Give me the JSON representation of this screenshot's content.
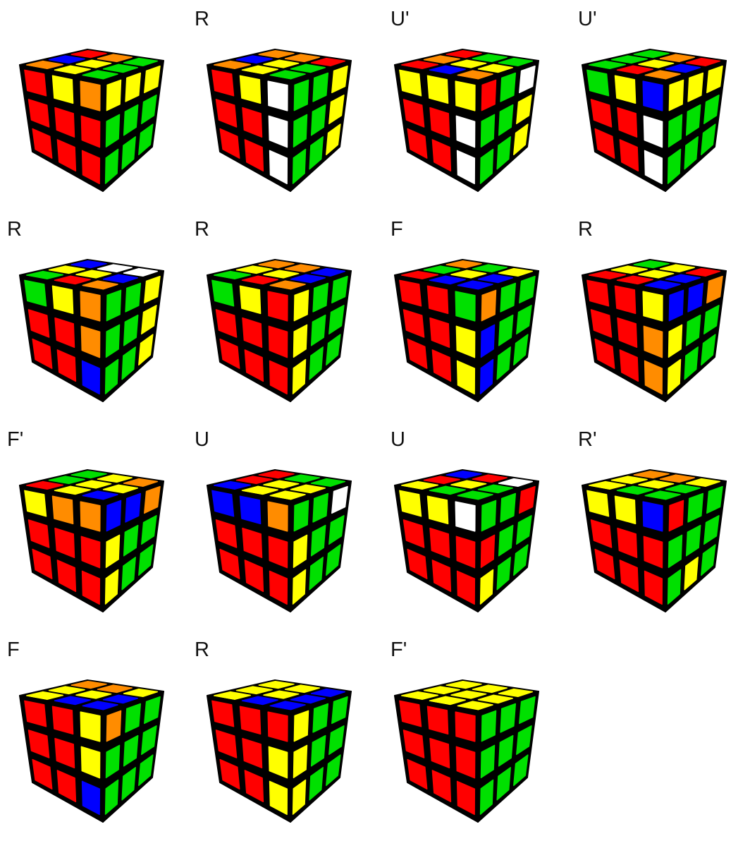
{
  "palette": {
    "R": "#FF0000",
    "G": "#00E000",
    "B": "#0000FF",
    "Y": "#FFFF00",
    "O": "#FF8C00",
    "W": "#FFFFFF",
    "outline": "#000000",
    "background": "#FFFFFF"
  },
  "steps": [
    {
      "move": "",
      "top": [
        "O",
        "B",
        "R",
        "Y",
        "Y",
        "O",
        "G",
        "G",
        "G"
      ],
      "front": [
        "R",
        "Y",
        "O",
        "R",
        "R",
        "R",
        "R",
        "R",
        "R"
      ],
      "right": [
        "Y",
        "Y",
        "Y",
        "G",
        "G",
        "G",
        "G",
        "G",
        "G"
      ]
    },
    {
      "move": "R",
      "top": [
        "O",
        "B",
        "O",
        "Y",
        "Y",
        "O",
        "G",
        "G",
        "R"
      ],
      "front": [
        "R",
        "Y",
        "W",
        "R",
        "R",
        "W",
        "R",
        "R",
        "W"
      ],
      "right": [
        "G",
        "G",
        "Y",
        "G",
        "G",
        "Y",
        "G",
        "G",
        "Y"
      ]
    },
    {
      "move": "U'",
      "top": [
        "R",
        "O",
        "R",
        "B",
        "Y",
        "G",
        "O",
        "Y",
        "G"
      ],
      "front": [
        "Y",
        "Y",
        "Y",
        "R",
        "R",
        "W",
        "R",
        "R",
        "W"
      ],
      "right": [
        "R",
        "G",
        "W",
        "G",
        "G",
        "Y",
        "G",
        "G",
        "Y"
      ]
    },
    {
      "move": "U'",
      "top": [
        "G",
        "G",
        "G",
        "R",
        "Y",
        "O",
        "O",
        "B",
        "R"
      ],
      "front": [
        "G",
        "Y",
        "B",
        "R",
        "R",
        "W",
        "R",
        "R",
        "W"
      ],
      "right": [
        "Y",
        "Y",
        "Y",
        "G",
        "G",
        "G",
        "G",
        "G",
        "G"
      ]
    },
    {
      "move": "R",
      "top": [
        "G",
        "Y",
        "B",
        "R",
        "Y",
        "W",
        "O",
        "B",
        "W"
      ],
      "front": [
        "G",
        "Y",
        "O",
        "R",
        "R",
        "O",
        "R",
        "R",
        "B"
      ],
      "right": [
        "G",
        "G",
        "Y",
        "G",
        "G",
        "Y",
        "G",
        "G",
        "Y"
      ]
    },
    {
      "move": "R",
      "top": [
        "G",
        "Y",
        "O",
        "R",
        "Y",
        "O",
        "O",
        "B",
        "B"
      ],
      "front": [
        "G",
        "Y",
        "R",
        "R",
        "R",
        "R",
        "R",
        "R",
        "R"
      ],
      "right": [
        "Y",
        "G",
        "G",
        "Y",
        "G",
        "G",
        "Y",
        "G",
        "G"
      ]
    },
    {
      "move": "F",
      "top": [
        "R",
        "G",
        "O",
        "B",
        "Y",
        "G",
        "B",
        "B",
        "Y"
      ],
      "front": [
        "R",
        "R",
        "G",
        "R",
        "R",
        "Y",
        "R",
        "R",
        "Y"
      ],
      "right": [
        "O",
        "G",
        "G",
        "B",
        "G",
        "G",
        "B",
        "G",
        "G"
      ]
    },
    {
      "move": "R",
      "top": [
        "R",
        "Y",
        "G",
        "R",
        "Y",
        "Y",
        "B",
        "B",
        "R"
      ],
      "front": [
        "R",
        "R",
        "Y",
        "R",
        "R",
        "O",
        "R",
        "R",
        "O"
      ],
      "right": [
        "B",
        "B",
        "O",
        "Y",
        "G",
        "G",
        "Y",
        "G",
        "G"
      ]
    },
    {
      "move": "F'",
      "top": [
        "R",
        "G",
        "G",
        "Y",
        "Y",
        "Y",
        "B",
        "Y",
        "O"
      ],
      "front": [
        "Y",
        "O",
        "O",
        "R",
        "R",
        "R",
        "R",
        "R",
        "R"
      ],
      "right": [
        "B",
        "B",
        "O",
        "Y",
        "G",
        "G",
        "Y",
        "G",
        "G"
      ]
    },
    {
      "move": "U",
      "top": [
        "B",
        "R",
        "R",
        "Y",
        "Y",
        "G",
        "Y",
        "Y",
        "G"
      ],
      "front": [
        "B",
        "B",
        "O",
        "R",
        "R",
        "R",
        "R",
        "R",
        "R"
      ],
      "right": [
        "G",
        "G",
        "W",
        "Y",
        "G",
        "G",
        "Y",
        "G",
        "G"
      ]
    },
    {
      "move": "U",
      "top": [
        "Y",
        "R",
        "B",
        "G",
        "Y",
        "R",
        "G",
        "G",
        "W"
      ],
      "front": [
        "Y",
        "Y",
        "W",
        "R",
        "R",
        "R",
        "R",
        "R",
        "R"
      ],
      "right": [
        "G",
        "G",
        "R",
        "R",
        "G",
        "G",
        "Y",
        "G",
        "G"
      ]
    },
    {
      "move": "R'",
      "top": [
        "Y",
        "Y",
        "O",
        "G",
        "Y",
        "O",
        "G",
        "G",
        "Y"
      ],
      "front": [
        "Y",
        "Y",
        "B",
        "R",
        "R",
        "R",
        "R",
        "R",
        "R"
      ],
      "right": [
        "R",
        "G",
        "G",
        "G",
        "G",
        "G",
        "G",
        "Y",
        "G"
      ]
    },
    {
      "move": "F",
      "top": [
        "Y",
        "Y",
        "O",
        "B",
        "Y",
        "O",
        "B",
        "B",
        "Y"
      ],
      "front": [
        "R",
        "R",
        "Y",
        "R",
        "R",
        "Y",
        "R",
        "R",
        "B"
      ],
      "right": [
        "O",
        "G",
        "G",
        "G",
        "G",
        "G",
        "G",
        "G",
        "G"
      ]
    },
    {
      "move": "R",
      "top": [
        "Y",
        "Y",
        "Y",
        "B",
        "Y",
        "Y",
        "B",
        "B",
        "B"
      ],
      "front": [
        "R",
        "R",
        "R",
        "R",
        "R",
        "Y",
        "R",
        "R",
        "Y"
      ],
      "right": [
        "Y",
        "G",
        "G",
        "Y",
        "G",
        "G",
        "Y",
        "G",
        "G"
      ]
    },
    {
      "move": "F'",
      "top": [
        "Y",
        "Y",
        "Y",
        "Y",
        "Y",
        "Y",
        "Y",
        "Y",
        "Y"
      ],
      "front": [
        "R",
        "R",
        "R",
        "R",
        "R",
        "R",
        "R",
        "R",
        "R"
      ],
      "right": [
        "G",
        "G",
        "G",
        "G",
        "G",
        "G",
        "G",
        "G",
        "G"
      ]
    }
  ]
}
